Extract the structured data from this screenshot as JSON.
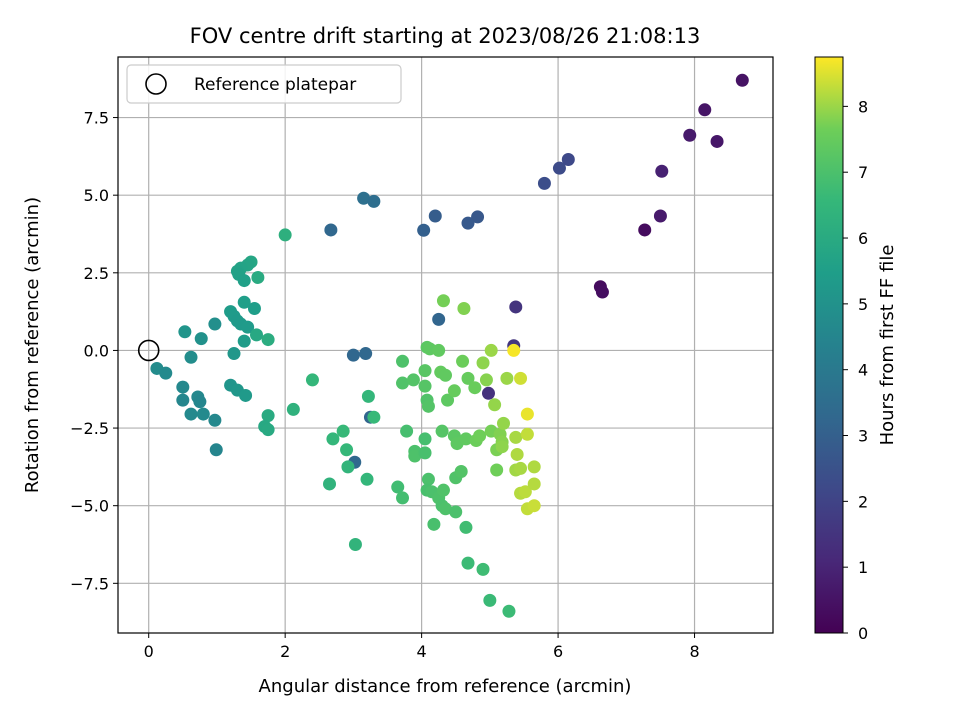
{
  "chart_data": {
    "type": "scatter",
    "title": "FOV centre drift starting at 2023/08/26 21:08:13",
    "xlabel": "Angular distance from reference (arcmin)",
    "ylabel": "Rotation from reference (arcmin)",
    "xlim": [
      -0.45,
      9.15
    ],
    "ylim": [
      -9.1,
      9.45
    ],
    "xticks": [
      0,
      2,
      4,
      6,
      8
    ],
    "yticks": [
      -7.5,
      -5.0,
      -2.5,
      0.0,
      2.5,
      5.0,
      7.5
    ],
    "grid": true,
    "legend": {
      "placement": "top-left",
      "entries": [
        "Reference platepar"
      ]
    },
    "reference_point": {
      "x": 0,
      "y": 0
    },
    "colorbar": {
      "label": "Hours from first FF file",
      "min": 0,
      "max": 8.75,
      "ticks": [
        0,
        1,
        2,
        3,
        4,
        5,
        6,
        7,
        8
      ],
      "colormap": "viridis"
    },
    "points": [
      {
        "x": 8.7,
        "y": 8.7,
        "h": 0.5
      },
      {
        "x": 8.15,
        "y": 7.75,
        "h": 0.55
      },
      {
        "x": 7.93,
        "y": 6.93,
        "h": 0.7
      },
      {
        "x": 8.33,
        "y": 6.73,
        "h": 0.6
      },
      {
        "x": 7.52,
        "y": 5.77,
        "h": 0.9
      },
      {
        "x": 7.5,
        "y": 4.33,
        "h": 0.7
      },
      {
        "x": 7.27,
        "y": 3.88,
        "h": 0.3
      },
      {
        "x": 6.62,
        "y": 2.05,
        "h": 0.3
      },
      {
        "x": 6.65,
        "y": 1.88,
        "h": 0.35
      },
      {
        "x": 6.15,
        "y": 6.15,
        "h": 2.2
      },
      {
        "x": 6.02,
        "y": 5.87,
        "h": 2.25
      },
      {
        "x": 5.8,
        "y": 5.38,
        "h": 2.35
      },
      {
        "x": 5.38,
        "y": 1.4,
        "h": 1.5
      },
      {
        "x": 5.35,
        "y": 0.15,
        "h": 1.55
      },
      {
        "x": 4.98,
        "y": -1.38,
        "h": 1.4
      },
      {
        "x": 4.82,
        "y": 4.3,
        "h": 2.7
      },
      {
        "x": 4.68,
        "y": 4.1,
        "h": 2.75
      },
      {
        "x": 4.2,
        "y": 4.33,
        "h": 2.9
      },
      {
        "x": 4.03,
        "y": 3.87,
        "h": 3.0
      },
      {
        "x": 3.15,
        "y": 4.9,
        "h": 3.6
      },
      {
        "x": 3.3,
        "y": 4.8,
        "h": 3.55
      },
      {
        "x": 2.67,
        "y": 3.88,
        "h": 3.3
      },
      {
        "x": 4.25,
        "y": 1.0,
        "h": 3.2
      },
      {
        "x": 3.18,
        "y": -0.1,
        "h": 3.3
      },
      {
        "x": 3.0,
        "y": -0.15,
        "h": 3.25
      },
      {
        "x": 3.25,
        "y": -2.15,
        "h": 3.2
      },
      {
        "x": 3.02,
        "y": -3.6,
        "h": 3.3
      },
      {
        "x": 2.0,
        "y": 3.72,
        "h": 6.2
      },
      {
        "x": 1.5,
        "y": 2.85,
        "h": 5.8
      },
      {
        "x": 1.45,
        "y": 2.75,
        "h": 5.75
      },
      {
        "x": 1.35,
        "y": 2.65,
        "h": 5.7
      },
      {
        "x": 1.3,
        "y": 2.55,
        "h": 5.65
      },
      {
        "x": 1.32,
        "y": 2.45,
        "h": 5.6
      },
      {
        "x": 1.4,
        "y": 2.25,
        "h": 5.55
      },
      {
        "x": 1.6,
        "y": 2.35,
        "h": 6.0
      },
      {
        "x": 1.4,
        "y": 1.55,
        "h": 5.5
      },
      {
        "x": 1.55,
        "y": 1.35,
        "h": 5.45
      },
      {
        "x": 1.2,
        "y": 1.25,
        "h": 5.4
      },
      {
        "x": 1.25,
        "y": 1.1,
        "h": 5.35
      },
      {
        "x": 1.3,
        "y": 0.95,
        "h": 5.3
      },
      {
        "x": 1.35,
        "y": 0.85,
        "h": 5.3
      },
      {
        "x": 1.45,
        "y": 0.75,
        "h": 5.35
      },
      {
        "x": 1.4,
        "y": 0.3,
        "h": 5.4
      },
      {
        "x": 1.58,
        "y": 0.5,
        "h": 5.9
      },
      {
        "x": 1.75,
        "y": 0.35,
        "h": 6.1
      },
      {
        "x": 0.97,
        "y": 0.85,
        "h": 4.9
      },
      {
        "x": 0.53,
        "y": 0.6,
        "h": 5.1
      },
      {
        "x": 0.77,
        "y": 0.38,
        "h": 4.95
      },
      {
        "x": 0.62,
        "y": -0.22,
        "h": 4.8
      },
      {
        "x": 0.12,
        "y": -0.58,
        "h": 4.75
      },
      {
        "x": 0.25,
        "y": -0.73,
        "h": 4.7
      },
      {
        "x": 1.25,
        "y": -0.1,
        "h": 5.2
      },
      {
        "x": 0.5,
        "y": -1.18,
        "h": 4.6
      },
      {
        "x": 0.5,
        "y": -1.6,
        "h": 4.55
      },
      {
        "x": 0.72,
        "y": -1.5,
        "h": 4.6
      },
      {
        "x": 0.75,
        "y": -1.65,
        "h": 4.55
      },
      {
        "x": 0.62,
        "y": -2.05,
        "h": 4.65
      },
      {
        "x": 0.8,
        "y": -2.05,
        "h": 4.7
      },
      {
        "x": 0.97,
        "y": -2.25,
        "h": 4.6
      },
      {
        "x": 0.99,
        "y": -3.2,
        "h": 4.5
      },
      {
        "x": 1.2,
        "y": -1.12,
        "h": 5.1
      },
      {
        "x": 1.3,
        "y": -1.28,
        "h": 5.2
      },
      {
        "x": 1.42,
        "y": -1.45,
        "h": 5.3
      },
      {
        "x": 1.75,
        "y": -2.1,
        "h": 6.0
      },
      {
        "x": 1.7,
        "y": -2.45,
        "h": 5.9
      },
      {
        "x": 1.75,
        "y": -2.55,
        "h": 5.95
      },
      {
        "x": 2.12,
        "y": -1.9,
        "h": 6.3
      },
      {
        "x": 2.4,
        "y": -0.95,
        "h": 6.5
      },
      {
        "x": 2.7,
        "y": -2.85,
        "h": 6.5
      },
      {
        "x": 2.85,
        "y": -2.6,
        "h": 6.6
      },
      {
        "x": 2.9,
        "y": -3.2,
        "h": 6.55
      },
      {
        "x": 2.92,
        "y": -3.75,
        "h": 6.45
      },
      {
        "x": 2.65,
        "y": -4.3,
        "h": 6.35
      },
      {
        "x": 3.2,
        "y": -4.15,
        "h": 6.5
      },
      {
        "x": 3.22,
        "y": -1.48,
        "h": 6.5
      },
      {
        "x": 3.3,
        "y": -2.15,
        "h": 6.6
      },
      {
        "x": 3.03,
        "y": -6.25,
        "h": 6.4
      },
      {
        "x": 3.65,
        "y": -4.4,
        "h": 6.8
      },
      {
        "x": 3.72,
        "y": -4.75,
        "h": 6.85
      },
      {
        "x": 3.78,
        "y": -2.6,
        "h": 6.9
      },
      {
        "x": 3.72,
        "y": -1.05,
        "h": 7.1
      },
      {
        "x": 3.72,
        "y": -0.35,
        "h": 7.05
      },
      {
        "x": 3.88,
        "y": -0.95,
        "h": 7.15
      },
      {
        "x": 3.9,
        "y": -3.25,
        "h": 7.0
      },
      {
        "x": 3.9,
        "y": -3.4,
        "h": 7.05
      },
      {
        "x": 4.05,
        "y": -2.85,
        "h": 6.9
      },
      {
        "x": 4.05,
        "y": -3.3,
        "h": 6.95
      },
      {
        "x": 4.08,
        "y": -1.6,
        "h": 7.1
      },
      {
        "x": 4.1,
        "y": -1.8,
        "h": 7.15
      },
      {
        "x": 4.05,
        "y": -1.15,
        "h": 7.2
      },
      {
        "x": 4.05,
        "y": -0.65,
        "h": 7.25
      },
      {
        "x": 4.08,
        "y": 0.1,
        "h": 7.3
      },
      {
        "x": 4.12,
        "y": 0.05,
        "h": 7.35
      },
      {
        "x": 4.25,
        "y": -0.0,
        "h": 7.4
      },
      {
        "x": 4.28,
        "y": -0.7,
        "h": 7.45
      },
      {
        "x": 4.32,
        "y": 1.6,
        "h": 7.7
      },
      {
        "x": 4.35,
        "y": -0.8,
        "h": 7.4
      },
      {
        "x": 4.38,
        "y": -1.6,
        "h": 7.35
      },
      {
        "x": 4.48,
        "y": -1.3,
        "h": 7.5
      },
      {
        "x": 4.3,
        "y": -2.6,
        "h": 7.2
      },
      {
        "x": 4.48,
        "y": -2.75,
        "h": 7.3
      },
      {
        "x": 4.52,
        "y": -3.0,
        "h": 7.35
      },
      {
        "x": 4.1,
        "y": -4.15,
        "h": 7.0
      },
      {
        "x": 4.08,
        "y": -4.5,
        "h": 6.95
      },
      {
        "x": 4.15,
        "y": -4.55,
        "h": 7.0
      },
      {
        "x": 4.25,
        "y": -4.75,
        "h": 7.05
      },
      {
        "x": 4.32,
        "y": -4.5,
        "h": 7.1
      },
      {
        "x": 4.3,
        "y": -5.0,
        "h": 7.0
      },
      {
        "x": 4.35,
        "y": -5.1,
        "h": 7.05
      },
      {
        "x": 4.18,
        "y": -5.6,
        "h": 6.95
      },
      {
        "x": 4.5,
        "y": -5.2,
        "h": 7.0
      },
      {
        "x": 4.5,
        "y": -4.1,
        "h": 7.1
      },
      {
        "x": 4.58,
        "y": -3.9,
        "h": 7.15
      },
      {
        "x": 4.65,
        "y": -2.85,
        "h": 7.4
      },
      {
        "x": 4.6,
        "y": -0.35,
        "h": 7.6
      },
      {
        "x": 4.62,
        "y": 1.35,
        "h": 7.8
      },
      {
        "x": 4.68,
        "y": -0.9,
        "h": 7.5
      },
      {
        "x": 4.78,
        "y": -1.2,
        "h": 7.55
      },
      {
        "x": 4.8,
        "y": -2.9,
        "h": 7.6
      },
      {
        "x": 4.85,
        "y": -2.75,
        "h": 7.65
      },
      {
        "x": 4.65,
        "y": -5.7,
        "h": 6.8
      },
      {
        "x": 4.68,
        "y": -6.85,
        "h": 6.7
      },
      {
        "x": 4.9,
        "y": -7.05,
        "h": 6.75
      },
      {
        "x": 5.0,
        "y": -8.05,
        "h": 6.65
      },
      {
        "x": 5.28,
        "y": -8.4,
        "h": 6.7
      },
      {
        "x": 4.9,
        "y": -0.4,
        "h": 7.9
      },
      {
        "x": 4.95,
        "y": -0.95,
        "h": 7.85
      },
      {
        "x": 5.02,
        "y": 0.0,
        "h": 8.0
      },
      {
        "x": 5.02,
        "y": -2.6,
        "h": 7.7
      },
      {
        "x": 5.07,
        "y": -1.75,
        "h": 7.95
      },
      {
        "x": 5.1,
        "y": -3.2,
        "h": 7.75
      },
      {
        "x": 5.1,
        "y": -3.85,
        "h": 7.65
      },
      {
        "x": 5.15,
        "y": -2.7,
        "h": 7.8
      },
      {
        "x": 5.18,
        "y": -2.95,
        "h": 7.85
      },
      {
        "x": 5.18,
        "y": -3.1,
        "h": 7.9
      },
      {
        "x": 5.2,
        "y": -2.35,
        "h": 7.95
      },
      {
        "x": 5.25,
        "y": -0.9,
        "h": 8.0
      },
      {
        "x": 5.35,
        "y": 0.0,
        "h": 8.7
      },
      {
        "x": 5.38,
        "y": -2.8,
        "h": 8.1
      },
      {
        "x": 5.4,
        "y": -3.35,
        "h": 8.15
      },
      {
        "x": 5.38,
        "y": -3.85,
        "h": 8.05
      },
      {
        "x": 5.45,
        "y": -3.8,
        "h": 8.1
      },
      {
        "x": 5.45,
        "y": -0.9,
        "h": 8.4
      },
      {
        "x": 5.45,
        "y": -4.6,
        "h": 8.2
      },
      {
        "x": 5.52,
        "y": -4.55,
        "h": 8.25
      },
      {
        "x": 5.55,
        "y": -2.05,
        "h": 8.6
      },
      {
        "x": 5.55,
        "y": -2.7,
        "h": 8.3
      },
      {
        "x": 5.55,
        "y": -5.1,
        "h": 8.3
      },
      {
        "x": 5.65,
        "y": -5.0,
        "h": 8.35
      },
      {
        "x": 5.65,
        "y": -4.3,
        "h": 8.2
      },
      {
        "x": 5.65,
        "y": -3.75,
        "h": 8.15
      }
    ]
  }
}
